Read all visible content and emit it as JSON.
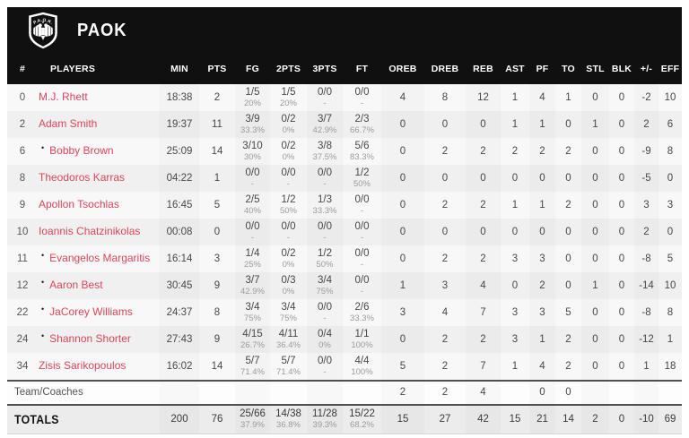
{
  "team": {
    "name": "PAOK",
    "logo": "paok-crest",
    "crest_text": "P.A.O.K."
  },
  "colors": {
    "header_bg": "#101010",
    "player_name": "#d8475b",
    "row_light": "#f8f8f8",
    "row_dark": "#f0f0f0",
    "totals_bg": "#ececec",
    "separator": "#4f4f4f",
    "pct_text": "#9b9b9b"
  },
  "columns": [
    {
      "key": "number",
      "label": "#"
    },
    {
      "key": "players",
      "label": "PLAYERS"
    },
    {
      "key": "min",
      "label": "MIN"
    },
    {
      "key": "pts",
      "label": "PTS"
    },
    {
      "key": "fg",
      "label": "FG"
    },
    {
      "key": "p2",
      "label": "2PTS"
    },
    {
      "key": "p3",
      "label": "3PTS"
    },
    {
      "key": "ft",
      "label": "FT"
    },
    {
      "key": "oreb",
      "label": "OREB"
    },
    {
      "key": "dreb",
      "label": "DREB"
    },
    {
      "key": "reb",
      "label": "REB"
    },
    {
      "key": "ast",
      "label": "AST"
    },
    {
      "key": "pf",
      "label": "PF"
    },
    {
      "key": "to",
      "label": "TO"
    },
    {
      "key": "stl",
      "label": "STL"
    },
    {
      "key": "blk",
      "label": "BLK"
    },
    {
      "key": "plus_minus",
      "label": "+/-"
    },
    {
      "key": "eff",
      "label": "EFF"
    }
  ],
  "players": [
    {
      "number": "0",
      "name": "M.J. Rhett",
      "starter": false,
      "min": "18:38",
      "pts": "2",
      "fg": "1/5",
      "fg_pct": "20%",
      "p2": "1/5",
      "p2_pct": "20%",
      "p3": "0/0",
      "p3_pct": "-",
      "ft": "0/0",
      "ft_pct": "-",
      "oreb": "4",
      "dreb": "8",
      "reb": "12",
      "ast": "1",
      "pf": "4",
      "to": "1",
      "stl": "0",
      "blk": "0",
      "plus_minus": "-2",
      "eff": "10"
    },
    {
      "number": "2",
      "name": "Adam Smith",
      "starter": false,
      "min": "19:37",
      "pts": "11",
      "fg": "3/9",
      "fg_pct": "33.3%",
      "p2": "0/2",
      "p2_pct": "0%",
      "p3": "3/7",
      "p3_pct": "42.9%",
      "ft": "2/3",
      "ft_pct": "66.7%",
      "oreb": "0",
      "dreb": "0",
      "reb": "0",
      "ast": "1",
      "pf": "1",
      "to": "0",
      "stl": "1",
      "blk": "0",
      "plus_minus": "2",
      "eff": "6"
    },
    {
      "number": "6",
      "name": "Bobby Brown",
      "starter": true,
      "min": "25:09",
      "pts": "14",
      "fg": "3/10",
      "fg_pct": "30%",
      "p2": "0/2",
      "p2_pct": "0%",
      "p3": "3/8",
      "p3_pct": "37.5%",
      "ft": "5/6",
      "ft_pct": "83.3%",
      "oreb": "0",
      "dreb": "2",
      "reb": "2",
      "ast": "2",
      "pf": "2",
      "to": "2",
      "stl": "0",
      "blk": "0",
      "plus_minus": "-9",
      "eff": "8"
    },
    {
      "number": "8",
      "name": "Theodoros Karras",
      "starter": false,
      "min": "04:22",
      "pts": "1",
      "fg": "0/0",
      "fg_pct": "-",
      "p2": "0/0",
      "p2_pct": "-",
      "p3": "0/0",
      "p3_pct": "-",
      "ft": "1/2",
      "ft_pct": "50%",
      "oreb": "0",
      "dreb": "0",
      "reb": "0",
      "ast": "0",
      "pf": "0",
      "to": "0",
      "stl": "0",
      "blk": "0",
      "plus_minus": "-5",
      "eff": "0"
    },
    {
      "number": "9",
      "name": "Apollon Tsochlas",
      "starter": false,
      "min": "16:45",
      "pts": "5",
      "fg": "2/5",
      "fg_pct": "40%",
      "p2": "1/2",
      "p2_pct": "50%",
      "p3": "1/3",
      "p3_pct": "33.3%",
      "ft": "0/0",
      "ft_pct": "-",
      "oreb": "0",
      "dreb": "2",
      "reb": "2",
      "ast": "1",
      "pf": "1",
      "to": "2",
      "stl": "0",
      "blk": "0",
      "plus_minus": "3",
      "eff": "3"
    },
    {
      "number": "10",
      "name": "Ioannis Chatzinikolas",
      "starter": false,
      "min": "00:08",
      "pts": "0",
      "fg": "0/0",
      "fg_pct": "-",
      "p2": "0/0",
      "p2_pct": "-",
      "p3": "0/0",
      "p3_pct": "-",
      "ft": "0/0",
      "ft_pct": "-",
      "oreb": "0",
      "dreb": "0",
      "reb": "0",
      "ast": "0",
      "pf": "0",
      "to": "0",
      "stl": "0",
      "blk": "0",
      "plus_minus": "2",
      "eff": "0"
    },
    {
      "number": "11",
      "name": "Evangelos Margaritis",
      "starter": true,
      "min": "16:14",
      "pts": "3",
      "fg": "1/4",
      "fg_pct": "25%",
      "p2": "0/2",
      "p2_pct": "0%",
      "p3": "1/2",
      "p3_pct": "50%",
      "ft": "0/0",
      "ft_pct": "-",
      "oreb": "0",
      "dreb": "2",
      "reb": "2",
      "ast": "3",
      "pf": "3",
      "to": "0",
      "stl": "0",
      "blk": "0",
      "plus_minus": "-8",
      "eff": "5"
    },
    {
      "number": "12",
      "name": "Aaron Best",
      "starter": true,
      "min": "30:45",
      "pts": "9",
      "fg": "3/7",
      "fg_pct": "42.9%",
      "p2": "0/3",
      "p2_pct": "0%",
      "p3": "3/4",
      "p3_pct": "75%",
      "ft": "0/0",
      "ft_pct": "-",
      "oreb": "1",
      "dreb": "3",
      "reb": "4",
      "ast": "0",
      "pf": "2",
      "to": "0",
      "stl": "1",
      "blk": "0",
      "plus_minus": "-14",
      "eff": "10"
    },
    {
      "number": "22",
      "name": "JaCorey Williams",
      "starter": true,
      "min": "24:37",
      "pts": "8",
      "fg": "3/4",
      "fg_pct": "75%",
      "p2": "3/4",
      "p2_pct": "75%",
      "p3": "0/0",
      "p3_pct": "-",
      "ft": "2/6",
      "ft_pct": "33.3%",
      "oreb": "3",
      "dreb": "4",
      "reb": "7",
      "ast": "3",
      "pf": "3",
      "to": "5",
      "stl": "0",
      "blk": "0",
      "plus_minus": "-8",
      "eff": "8"
    },
    {
      "number": "24",
      "name": "Shannon Shorter",
      "starter": true,
      "min": "27:43",
      "pts": "9",
      "fg": "4/15",
      "fg_pct": "26.7%",
      "p2": "4/11",
      "p2_pct": "36.4%",
      "p3": "0/4",
      "p3_pct": "0%",
      "ft": "1/1",
      "ft_pct": "100%",
      "oreb": "0",
      "dreb": "2",
      "reb": "2",
      "ast": "3",
      "pf": "1",
      "to": "2",
      "stl": "0",
      "blk": "0",
      "plus_minus": "-12",
      "eff": "1"
    },
    {
      "number": "34",
      "name": "Zisis Sarikopoulos",
      "starter": false,
      "min": "16:02",
      "pts": "14",
      "fg": "5/7",
      "fg_pct": "71.4%",
      "p2": "5/7",
      "p2_pct": "71.4%",
      "p3": "0/0",
      "p3_pct": "-",
      "ft": "4/4",
      "ft_pct": "100%",
      "oreb": "5",
      "dreb": "2",
      "reb": "7",
      "ast": "1",
      "pf": "4",
      "to": "2",
      "stl": "0",
      "blk": "0",
      "plus_minus": "1",
      "eff": "18"
    }
  ],
  "team_row": {
    "label": "Team/Coaches",
    "min": "",
    "pts": "",
    "fg": "",
    "fg_pct": "",
    "p2": "",
    "p2_pct": "",
    "p3": "",
    "p3_pct": "",
    "ft": "",
    "ft_pct": "",
    "oreb": "2",
    "dreb": "2",
    "reb": "4",
    "ast": "",
    "pf": "0",
    "to": "0",
    "stl": "",
    "blk": "",
    "plus_minus": "",
    "eff": ""
  },
  "totals": {
    "label": "TOTALS",
    "min": "200",
    "pts": "76",
    "fg": "25/66",
    "fg_pct": "37.9%",
    "p2": "14/38",
    "p2_pct": "36.8%",
    "p3": "11/28",
    "p3_pct": "39.3%",
    "ft": "15/22",
    "ft_pct": "68.2%",
    "oreb": "15",
    "dreb": "27",
    "reb": "42",
    "ast": "15",
    "pf": "21",
    "to": "14",
    "stl": "2",
    "blk": "0",
    "plus_minus": "-10",
    "eff": "69"
  }
}
